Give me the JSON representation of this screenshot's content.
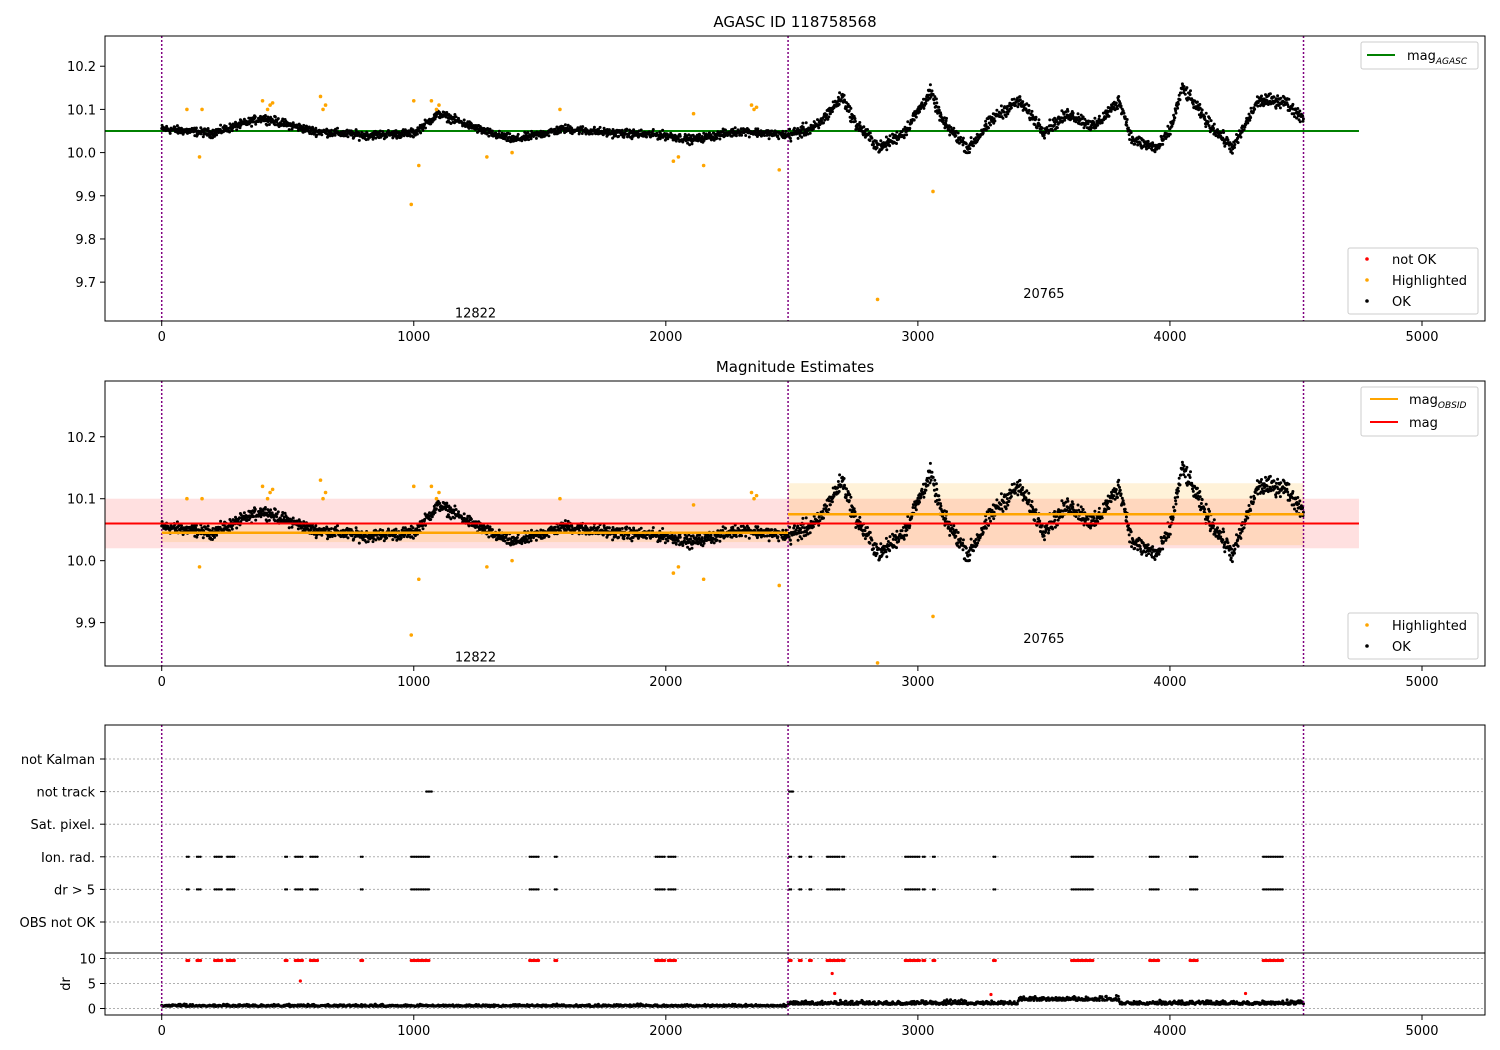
{
  "chart_data": [
    {
      "id": "p1",
      "type": "scatter",
      "title": "AGASC ID 118758568",
      "xlim": [
        -225,
        5250
      ],
      "ylim": [
        9.61,
        10.27
      ],
      "xticks": [
        0,
        1000,
        2000,
        3000,
        4000,
        5000
      ],
      "yticks": [
        9.7,
        9.8,
        9.9,
        10.0,
        10.1,
        10.2
      ],
      "obs_boundaries": [
        0,
        2485,
        4530
      ],
      "obs_labels": [
        {
          "text": "12822",
          "x": 1245,
          "y": 9.63
        },
        {
          "text": "20765",
          "x": 3500,
          "y": 9.675
        }
      ],
      "reference_line": {
        "name": "mag_AGASC",
        "y": 10.05,
        "x": [
          -225,
          4750
        ],
        "color": "#008000"
      },
      "legend_upper": [
        {
          "label": "mag",
          "sub": "AGASC",
          "kind": "line",
          "color": "#008000"
        }
      ],
      "legend_lower": [
        {
          "label": "not OK",
          "color": "#ff0000"
        },
        {
          "label": "Highlighted",
          "color": "#ffa500"
        },
        {
          "label": "OK",
          "color": "#000000"
        }
      ],
      "series": [
        {
          "name": "OK",
          "color": "#000000",
          "segments": [
            [
              0,
              10.055
            ],
            [
              200,
              10.045
            ],
            [
              400,
              10.08
            ],
            [
              600,
              10.05
            ],
            [
              800,
              10.04
            ],
            [
              1000,
              10.045
            ],
            [
              1100,
              10.09
            ],
            [
              1300,
              10.045
            ],
            [
              1400,
              10.03
            ],
            [
              1600,
              10.055
            ],
            [
              1800,
              10.045
            ],
            [
              2000,
              10.04
            ],
            [
              2100,
              10.03
            ],
            [
              2300,
              10.05
            ],
            [
              2485,
              10.04
            ],
            [
              2600,
              10.06
            ],
            [
              2700,
              10.13
            ],
            [
              2750,
              10.07
            ],
            [
              2850,
              10.01
            ],
            [
              2950,
              10.05
            ],
            [
              3050,
              10.14
            ],
            [
              3100,
              10.07
            ],
            [
              3200,
              10.01
            ],
            [
              3300,
              10.08
            ],
            [
              3400,
              10.12
            ],
            [
              3500,
              10.05
            ],
            [
              3600,
              10.09
            ],
            [
              3700,
              10.06
            ],
            [
              3800,
              10.12
            ],
            [
              3850,
              10.03
            ],
            [
              3950,
              10.01
            ],
            [
              4000,
              10.05
            ],
            [
              4050,
              10.15
            ],
            [
              4150,
              10.07
            ],
            [
              4250,
              10.01
            ],
            [
              4350,
              10.12
            ],
            [
              4450,
              10.12
            ],
            [
              4530,
              10.08
            ]
          ]
        },
        {
          "name": "Highlighted",
          "color": "#ffa500",
          "points": [
            [
              100,
              10.1
            ],
            [
              150,
              9.99
            ],
            [
              160,
              10.1
            ],
            [
              400,
              10.12
            ],
            [
              420,
              10.1
            ],
            [
              430,
              10.11
            ],
            [
              440,
              10.115
            ],
            [
              630,
              10.13
            ],
            [
              640,
              10.1
            ],
            [
              650,
              10.11
            ],
            [
              990,
              9.88
            ],
            [
              1000,
              10.12
            ],
            [
              1020,
              9.97
            ],
            [
              1070,
              10.12
            ],
            [
              1090,
              10.1
            ],
            [
              1100,
              10.11
            ],
            [
              1290,
              9.99
            ],
            [
              1390,
              10.0
            ],
            [
              1580,
              10.1
            ],
            [
              2030,
              9.98
            ],
            [
              2050,
              9.99
            ],
            [
              2110,
              10.09
            ],
            [
              2150,
              9.97
            ],
            [
              2340,
              10.11
            ],
            [
              2350,
              10.1
            ],
            [
              2360,
              10.105
            ],
            [
              2450,
              9.96
            ],
            [
              2840,
              9.66
            ],
            [
              3060,
              9.91
            ]
          ]
        },
        {
          "name": "not OK",
          "color": "#ff0000",
          "points": []
        }
      ]
    },
    {
      "id": "p2",
      "type": "scatter",
      "title": "Magnitude Estimates",
      "xlim": [
        -225,
        5250
      ],
      "ylim": [
        9.83,
        10.29
      ],
      "xticks": [
        0,
        1000,
        2000,
        3000,
        4000,
        5000
      ],
      "yticks": [
        9.9,
        10.0,
        10.1,
        10.2
      ],
      "obs_boundaries": [
        0,
        2485,
        4530
      ],
      "obs_labels": [
        {
          "text": "12822",
          "x": 1245,
          "y": 9.845
        },
        {
          "text": "20765",
          "x": 3500,
          "y": 9.875
        }
      ],
      "mag_band": {
        "y": 10.06,
        "lo": 10.02,
        "hi": 10.1,
        "x": [
          -225,
          4750
        ],
        "color": "#ff0000"
      },
      "obsid_mags": [
        {
          "x": [
            0,
            2485
          ],
          "y": 10.045,
          "lo": 10.03,
          "hi": 10.06,
          "color": "#ffa500"
        },
        {
          "x": [
            2485,
            4530
          ],
          "y": 10.075,
          "lo": 10.025,
          "hi": 10.125,
          "color": "#ffa500"
        }
      ],
      "legend_upper": [
        {
          "label": "mag",
          "sub": "OBSID",
          "kind": "line",
          "color": "#ffa500"
        },
        {
          "label": "mag",
          "sub": "",
          "kind": "line",
          "color": "#ff0000"
        }
      ],
      "legend_lower": [
        {
          "label": "Highlighted",
          "color": "#ffa500"
        },
        {
          "label": "OK",
          "color": "#000000"
        }
      ]
    },
    {
      "id": "p3",
      "type": "scatter",
      "xlim": [
        -225,
        5250
      ],
      "xticks": [
        0,
        1000,
        2000,
        3000,
        4000,
        5000
      ],
      "obs_boundaries": [
        0,
        2485,
        4530
      ],
      "flag_rows": [
        "not Kalman",
        "not track",
        "Sat. pixel.",
        "Ion. rad.",
        "dr > 5",
        "OBS not OK"
      ],
      "flag_points": {
        "not track": [
          [
            1050,
            1075
          ],
          [
            2490,
            2510
          ]
        ],
        "Ion. rad.": [
          [
            100,
            110
          ],
          [
            140,
            160
          ],
          [
            210,
            240
          ],
          [
            260,
            290
          ],
          [
            490,
            500
          ],
          [
            530,
            560
          ],
          [
            590,
            620
          ],
          [
            790,
            800
          ],
          [
            990,
            1060
          ],
          [
            1460,
            1500
          ],
          [
            1560,
            1570
          ],
          [
            1960,
            2000
          ],
          [
            2010,
            2040
          ],
          [
            2490,
            2500
          ],
          [
            2530,
            2540
          ],
          [
            2570,
            2580
          ],
          [
            2640,
            2690
          ],
          [
            2700,
            2710
          ],
          [
            2950,
            3010
          ],
          [
            3020,
            3030
          ],
          [
            3060,
            3070
          ],
          [
            3300,
            3310
          ],
          [
            3610,
            3700
          ],
          [
            3920,
            3960
          ],
          [
            4080,
            4110
          ],
          [
            4370,
            4450
          ]
        ],
        "dr > 5": [
          [
            100,
            110
          ],
          [
            140,
            160
          ],
          [
            210,
            240
          ],
          [
            260,
            290
          ],
          [
            490,
            500
          ],
          [
            530,
            560
          ],
          [
            590,
            620
          ],
          [
            790,
            800
          ],
          [
            990,
            1060
          ],
          [
            1460,
            1500
          ],
          [
            1560,
            1570
          ],
          [
            1960,
            2000
          ],
          [
            2010,
            2040
          ],
          [
            2490,
            2500
          ],
          [
            2530,
            2540
          ],
          [
            2570,
            2580
          ],
          [
            2640,
            2690
          ],
          [
            2700,
            2710
          ],
          [
            2950,
            3010
          ],
          [
            3020,
            3030
          ],
          [
            3060,
            3070
          ],
          [
            3300,
            3310
          ],
          [
            3610,
            3700
          ],
          [
            3920,
            3960
          ],
          [
            4080,
            4110
          ],
          [
            4370,
            4450
          ]
        ]
      },
      "dr_axis": {
        "ylabel": "dr",
        "ylim": [
          -0.5,
          10.5
        ],
        "yticks": [
          0,
          5,
          10
        ]
      }
    }
  ]
}
